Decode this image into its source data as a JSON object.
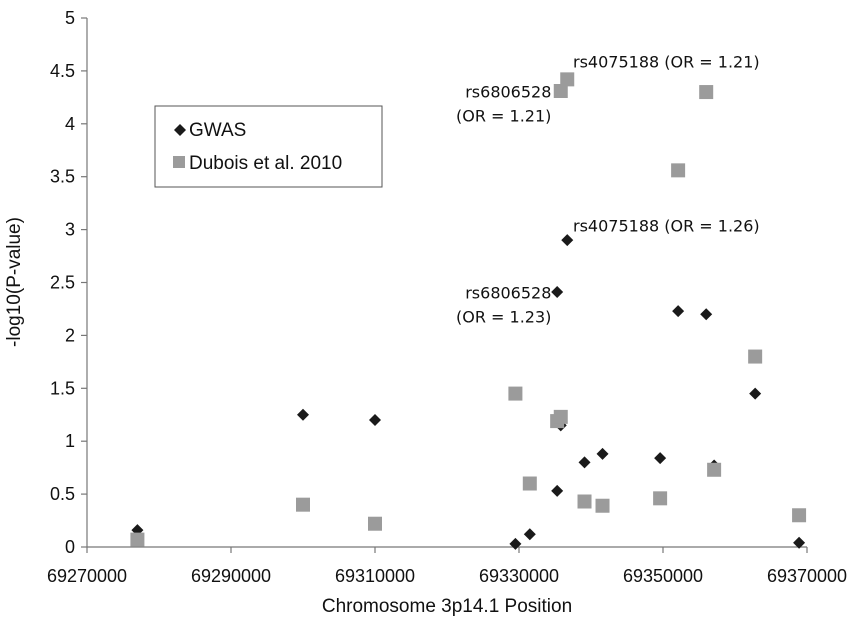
{
  "chart_data": {
    "type": "scatter",
    "xlabel": "Chromosome 3p14.1 Position",
    "ylabel": "-log10(P-value)",
    "xlim": [
      69270000,
      69370000
    ],
    "ylim": [
      0,
      5
    ],
    "x_ticks": [
      "69270000",
      "69290000",
      "69310000",
      "69330000",
      "69350000",
      "69370000"
    ],
    "y_ticks": [
      "0",
      "0.5",
      "1",
      "1.5",
      "2",
      "2.5",
      "3",
      "3.5",
      "4",
      "4.5",
      "5"
    ],
    "grid": false,
    "legend_position": "top-left",
    "series": [
      {
        "name": "GWAS",
        "marker": "diamond",
        "color": "#1a1a1a",
        "points": [
          {
            "x": 69277000,
            "y": 0.16
          },
          {
            "x": 69300000,
            "y": 1.25
          },
          {
            "x": 69310000,
            "y": 1.2
          },
          {
            "x": 69329500,
            "y": 0.03
          },
          {
            "x": 69331500,
            "y": 0.12
          },
          {
            "x": 69335300,
            "y": 0.53
          },
          {
            "x": 69335300,
            "y": 2.41
          },
          {
            "x": 69335800,
            "y": 1.15
          },
          {
            "x": 69336700,
            "y": 2.9
          },
          {
            "x": 69339100,
            "y": 0.8
          },
          {
            "x": 69341600,
            "y": 0.88
          },
          {
            "x": 69349600,
            "y": 0.84
          },
          {
            "x": 69352100,
            "y": 2.23
          },
          {
            "x": 69356000,
            "y": 2.2
          },
          {
            "x": 69357100,
            "y": 0.77
          },
          {
            "x": 69362800,
            "y": 1.45
          },
          {
            "x": 69368900,
            "y": 0.04
          }
        ]
      },
      {
        "name": "Dubois et al. 2010",
        "marker": "square",
        "color": "#9b9b9b",
        "points": [
          {
            "x": 69277000,
            "y": 0.07
          },
          {
            "x": 69300000,
            "y": 0.4
          },
          {
            "x": 69310000,
            "y": 0.22
          },
          {
            "x": 69329500,
            "y": 1.45
          },
          {
            "x": 69331500,
            "y": 0.6
          },
          {
            "x": 69335300,
            "y": 1.19
          },
          {
            "x": 69335800,
            "y": 4.31
          },
          {
            "x": 69335800,
            "y": 1.23
          },
          {
            "x": 69336700,
            "y": 4.42
          },
          {
            "x": 69339100,
            "y": 0.43
          },
          {
            "x": 69341600,
            "y": 0.39
          },
          {
            "x": 69349600,
            "y": 0.46
          },
          {
            "x": 69352100,
            "y": 3.56
          },
          {
            "x": 69356000,
            "y": 4.3
          },
          {
            "x": 69357100,
            "y": 0.73
          },
          {
            "x": 69362800,
            "y": 1.8
          },
          {
            "x": 69368900,
            "y": 0.3
          }
        ]
      }
    ],
    "annotations": [
      {
        "lines": [
          "rs4075188 (OR = 1.21)"
        ],
        "x": 69337500,
        "y": 4.53
      },
      {
        "lines": [
          "rs6806528",
          "(OR = 1.21)"
        ],
        "x": 69334500,
        "y": 4.25
      },
      {
        "lines": [
          "rs4075188 (OR = 1.26)"
        ],
        "x": 69337500,
        "y": 2.98
      },
      {
        "lines": [
          "rs6806528",
          "(OR = 1.23)"
        ],
        "x": 69334500,
        "y": 2.35
      }
    ]
  }
}
